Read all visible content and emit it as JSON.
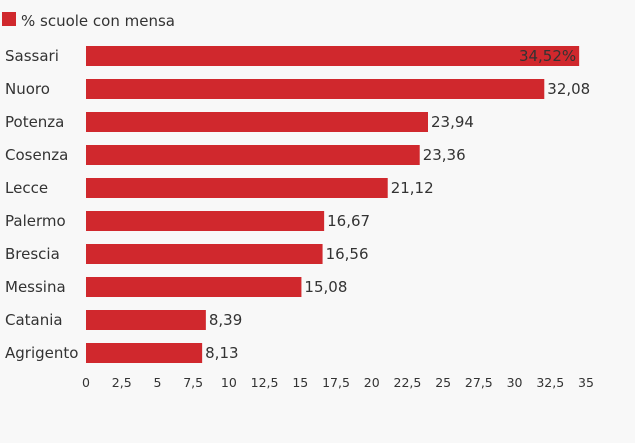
{
  "chart_data": {
    "type": "bar",
    "orientation": "horizontal",
    "legend_position": "top-left",
    "grid": false,
    "categories": [
      "Sassari",
      "Nuoro",
      "Potenza",
      "Cosenza",
      "Lecce",
      "Palermo",
      "Brescia",
      "Messina",
      "Catania",
      "Agrigento"
    ],
    "series": [
      {
        "name": "% scuole con mensa",
        "values": [
          34.52,
          32.08,
          23.94,
          23.36,
          21.12,
          16.67,
          16.56,
          15.08,
          8.39,
          8.13
        ],
        "labels": [
          "34,52%",
          "32,08",
          "23,94",
          "23,36",
          "21,12",
          "16,67",
          "16,56",
          "15,08",
          "8,39",
          "8,13"
        ],
        "color": "#d0282d"
      }
    ],
    "xlim": [
      0,
      35
    ],
    "xticks": [
      0,
      2.5,
      5,
      7.5,
      10,
      12.5,
      15,
      17.5,
      20,
      22.5,
      25,
      27.5,
      30,
      32.5,
      35
    ],
    "xtick_labels": [
      "0",
      "2,5",
      "5",
      "7,5",
      "10",
      "12,5",
      "15",
      "17,5",
      "20",
      "22,5",
      "25",
      "27,5",
      "30",
      "32,5",
      "35"
    ]
  },
  "colors": {
    "background": "#f8f8f8",
    "bar": "#d0282d",
    "text": "#333333"
  }
}
